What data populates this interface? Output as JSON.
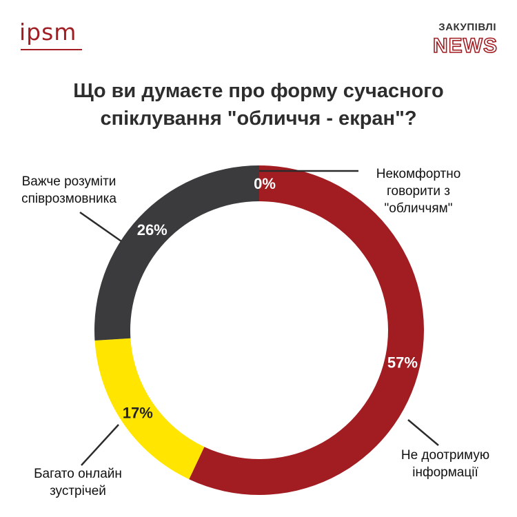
{
  "header": {
    "logo": "ipsm",
    "brand_top": "ЗАКУПІВЛІ",
    "brand_news": "NEWS",
    "brand_color": "#a11d22"
  },
  "chart_data": {
    "type": "pie",
    "donut": true,
    "title_lines": [
      "Що ви думаєте про форму сучасного",
      "спіклування \"обличчя - екран\"?"
    ],
    "slices": [
      {
        "name": "Некомфортно говорити з \"обличчям\"",
        "label_lines": [
          "Некомфортно",
          "говорити з",
          "\"обличчям\""
        ],
        "value": 0,
        "value_label": "0%",
        "color": "#a11d22"
      },
      {
        "name": "Не доотримую інформації",
        "label_lines": [
          "Не доотримую",
          "інформації"
        ],
        "value": 57,
        "value_label": "57%",
        "color": "#a11d22"
      },
      {
        "name": "Багато онлайн зустрічей",
        "label_lines": [
          "Багато онлайн",
          "зустрічей"
        ],
        "value": 17,
        "value_label": "17%",
        "color": "#ffe500"
      },
      {
        "name": "Важче розуміти співрозмовника",
        "label_lines": [
          "Важче розуміти",
          "співрозмовника"
        ],
        "value": 26,
        "value_label": "26%",
        "color": "#3b3b3d"
      }
    ]
  }
}
